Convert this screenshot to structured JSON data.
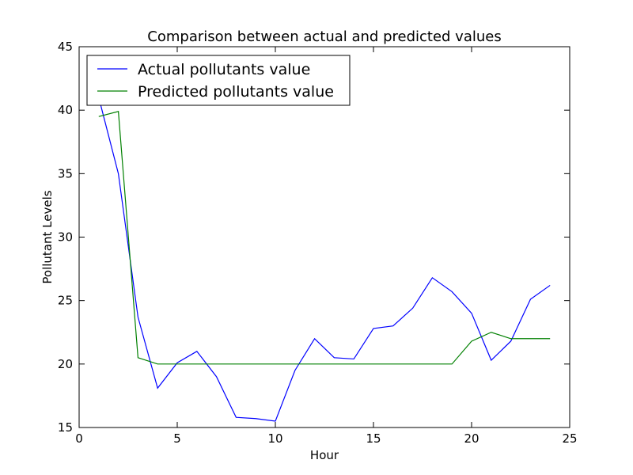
{
  "chart_data": {
    "type": "line",
    "title": "Comparison between actual and predicted values",
    "xlabel": "Hour",
    "ylabel": "Pollutant Levels",
    "xlim": [
      0,
      25
    ],
    "ylim": [
      15,
      45
    ],
    "xticks": [
      0,
      5,
      10,
      15,
      20,
      25
    ],
    "yticks": [
      15,
      20,
      25,
      30,
      35,
      40,
      45
    ],
    "grid": false,
    "legend_position": "upper-left",
    "x": [
      1,
      2,
      3,
      4,
      5,
      6,
      7,
      8,
      9,
      10,
      11,
      12,
      13,
      14,
      15,
      16,
      17,
      18,
      19,
      20,
      21,
      22,
      23,
      24
    ],
    "series": [
      {
        "name": "Actual pollutants value",
        "color": "#0000ff",
        "values": [
          41.0,
          35.0,
          23.7,
          18.1,
          20.1,
          21.0,
          19.0,
          15.8,
          15.7,
          15.5,
          19.5,
          22.0,
          20.5,
          20.4,
          22.8,
          23.0,
          24.4,
          26.8,
          25.7,
          24.0,
          20.3,
          21.8,
          25.1,
          26.2
        ]
      },
      {
        "name": "Predicted pollutants value",
        "color": "#008000",
        "values": [
          39.5,
          39.9,
          20.5,
          20.0,
          20.0,
          20.0,
          20.0,
          20.0,
          20.0,
          20.0,
          20.0,
          20.0,
          20.0,
          20.0,
          20.0,
          20.0,
          20.0,
          20.0,
          20.0,
          21.8,
          22.5,
          22.0,
          22.0,
          22.0
        ]
      }
    ]
  }
}
